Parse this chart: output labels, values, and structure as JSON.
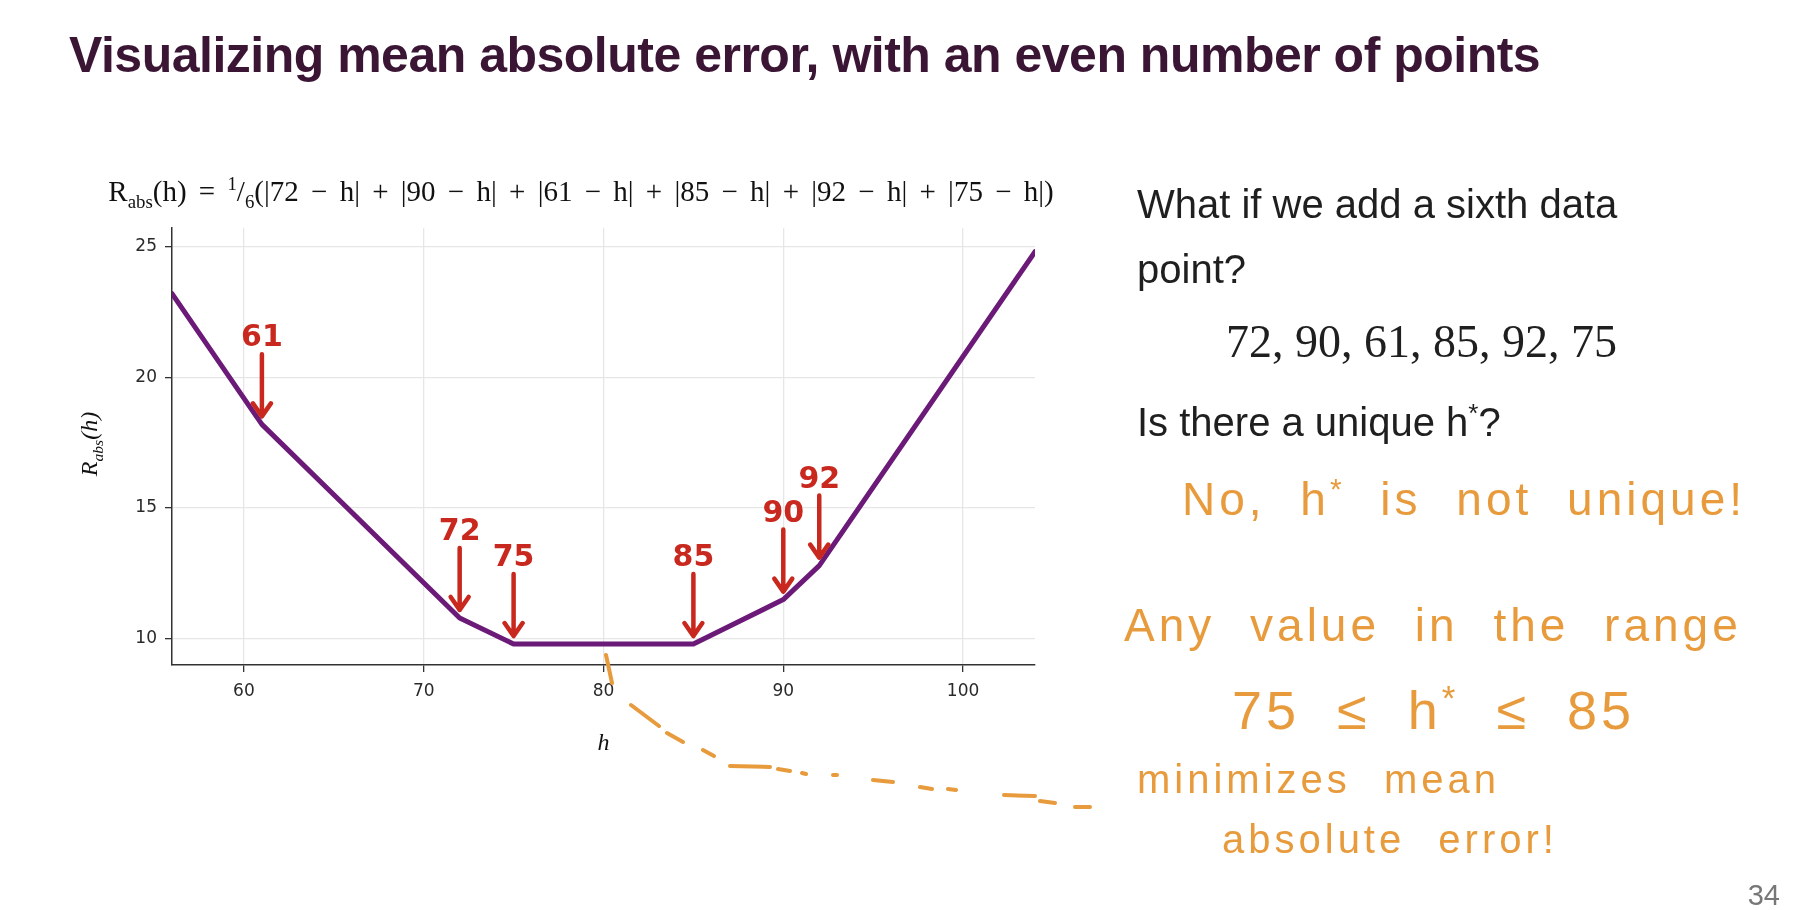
{
  "chart_data": {
    "type": "line",
    "title": "Visualizing mean absolute error, with an even number of points",
    "subtitle": "R$_{abs}$(h) = $^{1}$/$_{6}$(|72 − h| + |90 − h| + |61 − h| + |85 − h| + |92 − h| + |75 − h|)",
    "xlabel": "h",
    "ylabel": "R$_{abs}$(h)",
    "x": [
      56,
      61,
      72,
      75,
      85,
      90,
      92,
      104
    ],
    "series": [
      {
        "color": "#6b1a78",
        "values": [
          23.2,
          18.2,
          10.8,
          9.8,
          9.8,
          11.5,
          12.8,
          24.8
        ]
      }
    ],
    "xlim": [
      56,
      104
    ],
    "ylim": [
      9,
      25.7
    ],
    "xticks": [
      60,
      70,
      80,
      90,
      100
    ],
    "yticks": [
      10,
      15,
      20,
      25
    ],
    "grid": true,
    "annotations": [
      {
        "text": "61",
        "x": 61,
        "y": 18.2
      },
      {
        "text": "72",
        "x": 72,
        "y": 10.8
      },
      {
        "text": "75",
        "x": 75,
        "y": 9.8
      },
      {
        "text": "85",
        "x": 85,
        "y": 9.8
      },
      {
        "text": "90",
        "x": 90,
        "y": 11.5
      },
      {
        "text": "92",
        "x": 92,
        "y": 12.8
      },
      "What if we add a sixth data point?",
      "72, 90, 61, 85, 92, 75",
      "Is there a unique h$^{*}$?",
      "No, h$^{*}$ is not unique!",
      "Any value in the range",
      "75 ≤ h$^{*}$ ≤ 85",
      "minimizes mean absolute error!",
      "34"
    ]
  }
}
